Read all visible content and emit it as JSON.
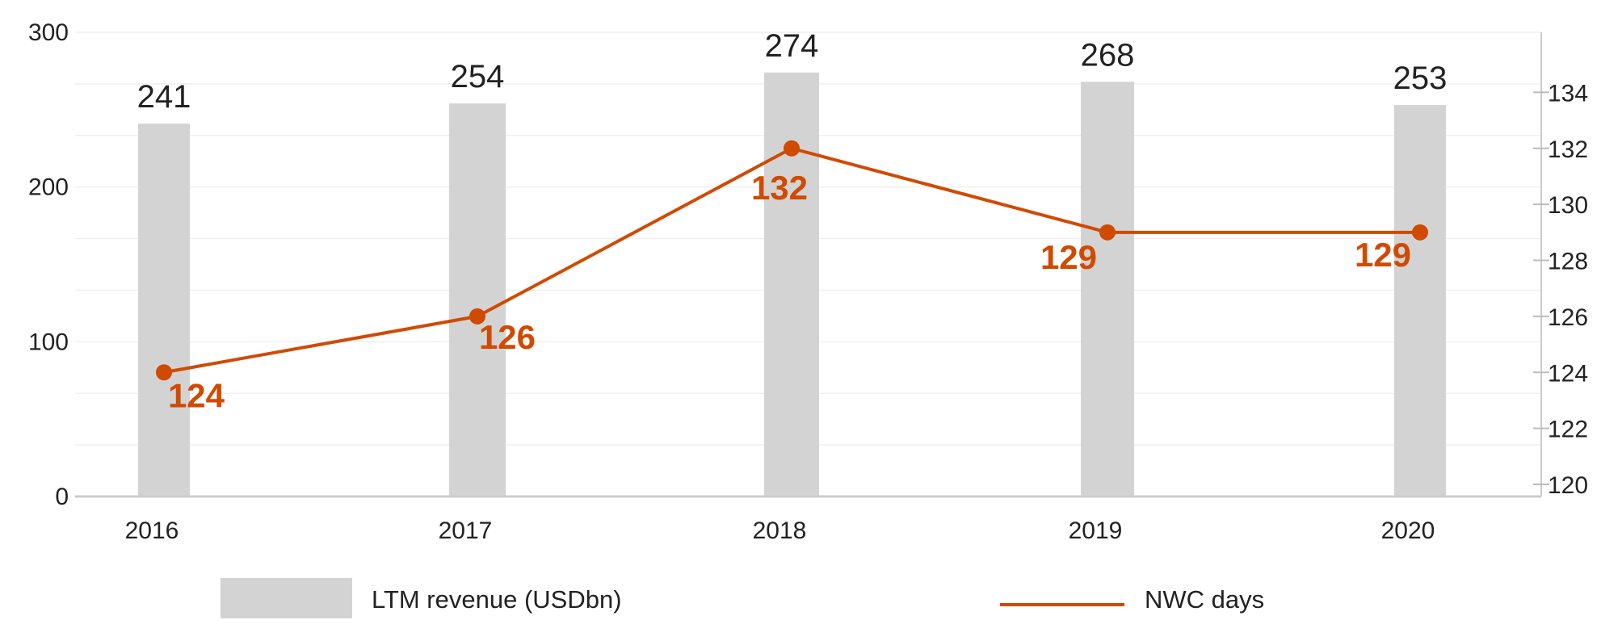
{
  "chart_data": {
    "type": "bar",
    "categories": [
      "2016",
      "2017",
      "2018",
      "2019",
      "2020"
    ],
    "series": [
      {
        "name": "LTM revenue (USDbn)",
        "type": "bar",
        "axis": "left",
        "values": [
          241,
          254,
          274,
          268,
          253
        ],
        "labels": [
          "241",
          "254",
          "274",
          "268",
          "253"
        ],
        "color": "#d3d3d3"
      },
      {
        "name": "NWC days",
        "type": "line",
        "axis": "right",
        "values": [
          124,
          126,
          132,
          129,
          129
        ],
        "labels": [
          "124",
          "126",
          "132",
          "129",
          "129"
        ],
        "color": "#d04a02"
      }
    ],
    "y_left": {
      "range": [
        0,
        300
      ],
      "ticks": [
        "0",
        "100",
        "200",
        "300"
      ]
    },
    "y_right": {
      "range": [
        120,
        136
      ],
      "ticks": [
        "120",
        "122",
        "124",
        "126",
        "128",
        "130",
        "132",
        "134"
      ]
    },
    "grid": true,
    "legend": "bottom"
  }
}
